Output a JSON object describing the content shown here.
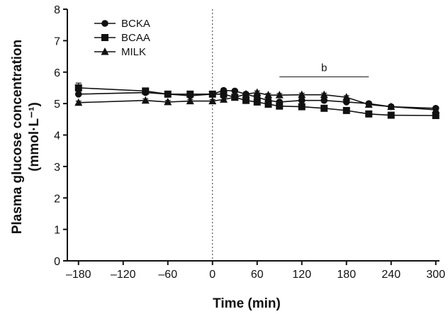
{
  "chart_data": {
    "type": "line",
    "xlabel": "Time (min)",
    "ylabel_line1": "Plasma glucose concentration",
    "ylabel_line2": "(mmol·L⁻¹)",
    "xlim": [
      -195,
      305
    ],
    "ylim": [
      0,
      8
    ],
    "xticks": [
      -180,
      -120,
      -60,
      0,
      60,
      120,
      180,
      240,
      300
    ],
    "xtick_labels": [
      "–180",
      "–120",
      "–60",
      "0",
      "60",
      "120",
      "180",
      "240",
      "300"
    ],
    "yticks": [
      0,
      1,
      2,
      3,
      4,
      5,
      6,
      7,
      8
    ],
    "ytick_labels": [
      "0",
      "1",
      "2",
      "3",
      "4",
      "5",
      "6",
      "7",
      "8"
    ],
    "vertical_reference_x": 0,
    "legend_position": "top-left",
    "grid": false,
    "series": [
      {
        "name": "BCKA",
        "marker": "circle",
        "x": [
          -180,
          -90,
          -60,
          -30,
          0,
          15,
          30,
          45,
          60,
          75,
          90,
          120,
          150,
          180,
          210,
          240,
          300
        ],
        "y": [
          5.3,
          5.35,
          5.3,
          5.25,
          5.3,
          5.42,
          5.4,
          5.3,
          5.2,
          5.1,
          5.05,
          5.1,
          5.1,
          5.05,
          5.0,
          4.9,
          4.85
        ],
        "err": [
          0.1,
          0.05,
          0.05,
          0.05,
          0.05,
          0.05,
          0.05,
          0.05,
          0.05,
          0.05,
          0.05,
          0.05,
          0.05,
          0.05,
          0.05,
          0.05,
          0.05
        ]
      },
      {
        "name": "BCAA",
        "marker": "square",
        "x": [
          -180,
          -90,
          -60,
          -30,
          0,
          15,
          30,
          45,
          60,
          75,
          90,
          120,
          150,
          180,
          210,
          240,
          300
        ],
        "y": [
          5.5,
          5.4,
          5.3,
          5.3,
          5.3,
          5.3,
          5.2,
          5.1,
          5.05,
          4.98,
          4.92,
          4.9,
          4.85,
          4.78,
          4.67,
          4.63,
          4.62
        ],
        "err": [
          0.15,
          0.05,
          0.05,
          0.05,
          0.05,
          0.05,
          0.05,
          0.05,
          0.05,
          0.05,
          0.05,
          0.05,
          0.05,
          0.05,
          0.05,
          0.05,
          0.05
        ]
      },
      {
        "name": "MILK",
        "marker": "triangle",
        "x": [
          -180,
          -90,
          -60,
          -30,
          0,
          15,
          30,
          45,
          60,
          75,
          90,
          120,
          150,
          180,
          210,
          240,
          300
        ],
        "y": [
          5.03,
          5.1,
          5.05,
          5.08,
          5.08,
          5.13,
          5.2,
          5.3,
          5.35,
          5.27,
          5.27,
          5.28,
          5.28,
          5.2,
          4.97,
          4.9,
          4.8
        ],
        "err": [
          0.05,
          0.05,
          0.05,
          0.05,
          0.05,
          0.05,
          0.05,
          0.05,
          0.05,
          0.05,
          0.05,
          0.05,
          0.05,
          0.05,
          0.05,
          0.05,
          0.05
        ]
      }
    ],
    "annotations": [
      {
        "text": "b",
        "x_start": 90,
        "x_end": 210,
        "y": 5.85
      }
    ]
  }
}
